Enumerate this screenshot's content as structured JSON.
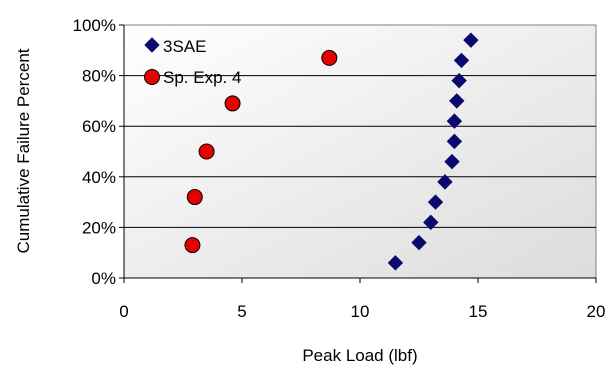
{
  "chart_data": {
    "type": "scatter",
    "xlabel": "Peak Load (lbf)",
    "ylabel": "Cumulative Failure Percent",
    "xlim": [
      0,
      20
    ],
    "ylim": [
      0,
      100
    ],
    "x_ticks": [
      "0",
      "5",
      "10",
      "15",
      "20"
    ],
    "y_ticks": [
      "0%",
      "20%",
      "40%",
      "60%",
      "80%",
      "100%"
    ],
    "grid": "horizontal",
    "legend_position": "top-left",
    "series": [
      {
        "name": "3SAE",
        "marker": "diamond",
        "color": "#0a0a6e",
        "points": [
          {
            "x": 11.5,
            "y": 6
          },
          {
            "x": 12.5,
            "y": 14
          },
          {
            "x": 13.0,
            "y": 22
          },
          {
            "x": 13.2,
            "y": 30
          },
          {
            "x": 13.6,
            "y": 38
          },
          {
            "x": 13.9,
            "y": 46
          },
          {
            "x": 14.0,
            "y": 54
          },
          {
            "x": 14.0,
            "y": 62
          },
          {
            "x": 14.1,
            "y": 70
          },
          {
            "x": 14.2,
            "y": 78
          },
          {
            "x": 14.3,
            "y": 86
          },
          {
            "x": 14.7,
            "y": 94
          }
        ]
      },
      {
        "name": "Sp. Exp. 4",
        "marker": "circle",
        "color": "#e60000",
        "points": [
          {
            "x": 2.9,
            "y": 13
          },
          {
            "x": 3.0,
            "y": 32
          },
          {
            "x": 3.5,
            "y": 50
          },
          {
            "x": 4.6,
            "y": 69
          },
          {
            "x": 8.7,
            "y": 87
          }
        ]
      }
    ]
  }
}
